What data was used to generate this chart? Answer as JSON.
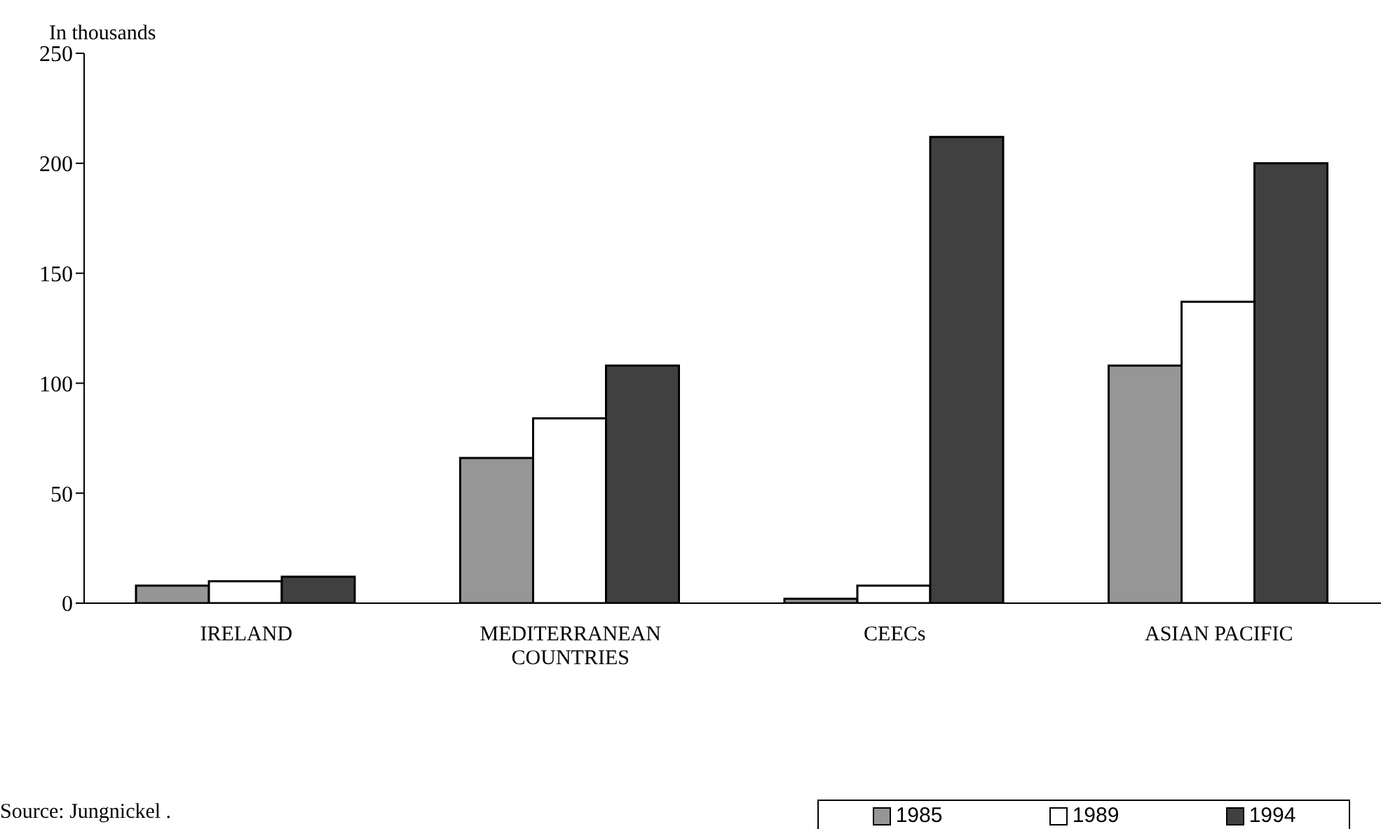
{
  "chart_data": {
    "type": "bar",
    "ylabel": "In thousands",
    "categories": [
      "IRELAND",
      "MEDITERRANEAN COUNTRIES",
      "CEECs",
      "ASIAN PACIFIC"
    ],
    "series": [
      {
        "name": "1985",
        "color": "#969696",
        "values": [
          8,
          66,
          2,
          108
        ]
      },
      {
        "name": "1989",
        "color": "#ffffff",
        "values": [
          10,
          84,
          8,
          137
        ]
      },
      {
        "name": "1994",
        "color": "#404040",
        "values": [
          12,
          108,
          212,
          200
        ]
      }
    ],
    "ylim": [
      0,
      250
    ],
    "yticks": [
      0,
      50,
      100,
      150,
      200,
      250
    ],
    "legend": "bottom right",
    "annotations": [
      "Source: Jungnickel ."
    ]
  }
}
